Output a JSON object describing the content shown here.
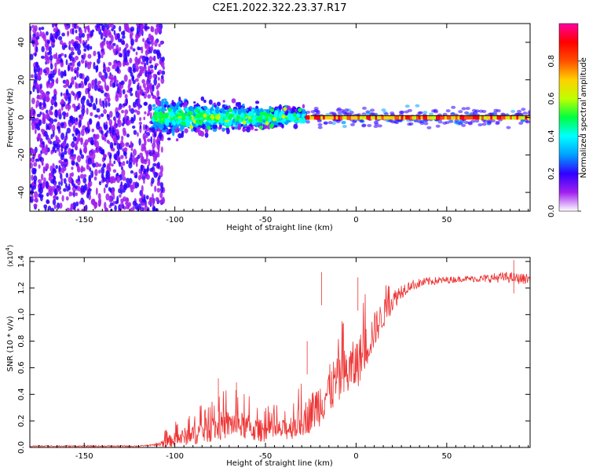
{
  "title": "C2E1.2022.322.23.37.R17",
  "chart_data": [
    {
      "type": "heatmap",
      "name": "spectrogram",
      "xlabel": "Height of straight line (km)",
      "ylabel": "Frequency (Hz)",
      "xlim": [
        -180,
        96
      ],
      "ylim": [
        -50,
        50
      ],
      "xticks": [
        -150,
        -100,
        -50,
        0,
        50
      ],
      "yticks": [
        -40,
        -20,
        0,
        20,
        40
      ],
      "colorbar": {
        "label": "Normalized spectral amplitude",
        "range": [
          0.0,
          1.0
        ],
        "ticks": [
          0.0,
          0.2,
          0.4,
          0.6,
          0.8
        ],
        "colors": [
          "#ffffff",
          "#a020f0",
          "#3000ff",
          "#00a0ff",
          "#00ffff",
          "#00ff40",
          "#c0ff00",
          "#ffd000",
          "#ff5000",
          "#ff0000",
          "#ff00a0"
        ]
      },
      "regions": [
        {
          "x_range": [
            -180,
            -112
          ],
          "freq_spread": 50,
          "amplitude": 0.15,
          "description": "noise"
        },
        {
          "x_range": [
            -112,
            -28
          ],
          "freq_spread": 8,
          "amplitude": 0.35
        },
        {
          "x_range": [
            -28,
            96
          ],
          "freq_center": 0,
          "amplitude": 0.85
        }
      ]
    },
    {
      "type": "line",
      "name": "snr",
      "xlabel": "Height of straight line (km)",
      "ylabel": "SNR (10 * v/v)",
      "y_scale_label": "(x10",
      "y_scale_exp": "4",
      "xlim": [
        -180,
        96
      ],
      "ylim": [
        0,
        1.43
      ],
      "xticks": [
        -150,
        -100,
        -50,
        0,
        50
      ],
      "yticks": [
        0.0,
        0.2,
        0.4,
        0.6,
        0.8,
        1.0,
        1.2,
        1.4
      ],
      "color": "#ee3333",
      "trend": {
        "x": [
          -180,
          -150,
          -120,
          -110,
          -100,
          -85,
          -75,
          -68,
          -62,
          -55,
          -48,
          -40,
          -32,
          -25,
          -20,
          -12,
          -5,
          0,
          5,
          10,
          15,
          20,
          25,
          30,
          40,
          50,
          60,
          70,
          80,
          85,
          90,
          96
        ],
        "y": [
          0.01,
          0.01,
          0.01,
          0.02,
          0.06,
          0.12,
          0.16,
          0.18,
          0.16,
          0.13,
          0.12,
          0.13,
          0.18,
          0.26,
          0.34,
          0.48,
          0.56,
          0.62,
          0.74,
          0.88,
          1.0,
          1.1,
          1.18,
          1.22,
          1.25,
          1.26,
          1.27,
          1.27,
          1.28,
          1.28,
          1.27,
          1.27
        ]
      },
      "noise": {
        "x": [
          -180,
          -112,
          -105,
          -90,
          -75,
          -60,
          -50,
          -40,
          -30,
          -20,
          -10,
          0,
          10,
          20,
          30,
          60,
          80,
          96
        ],
        "amp": [
          0.005,
          0.005,
          0.04,
          0.08,
          0.11,
          0.1,
          0.08,
          0.08,
          0.12,
          0.18,
          0.2,
          0.2,
          0.14,
          0.08,
          0.04,
          0.02,
          0.04,
          0.04
        ]
      },
      "spikes": [
        {
          "x": -19,
          "y": 1.32
        },
        {
          "x": -27,
          "y": 0.8
        },
        {
          "x": -76,
          "y": 0.52
        },
        {
          "x": -66,
          "y": 0.49
        },
        {
          "x": 1,
          "y": 1.28
        },
        {
          "x": 87,
          "y": 1.41
        }
      ]
    }
  ]
}
